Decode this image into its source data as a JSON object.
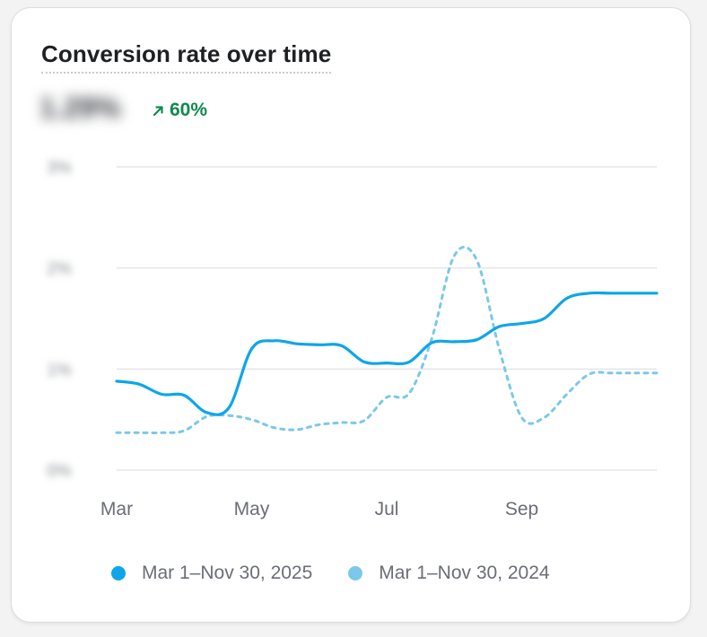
{
  "card": {
    "title": "Conversion rate over time",
    "metric_value": "1.29%",
    "delta_text": "60%",
    "delta_icon": "arrow-up-right-icon",
    "delta_color": "#0e8a4e"
  },
  "chart_data": {
    "type": "line",
    "title": "Conversion rate over time",
    "xlabel": "",
    "ylabel": "",
    "x_ticks": [
      "Mar",
      "May",
      "Jul",
      "Sep"
    ],
    "y_ticks": [
      "0%",
      "1%",
      "2%",
      "3%"
    ],
    "ylim": [
      0,
      3
    ],
    "xlim": [
      0,
      24
    ],
    "grid": true,
    "legend_position": "bottom",
    "series": [
      {
        "name": "Mar 1–Nov 30, 2025",
        "color": "#0ea5e9",
        "style": "solid",
        "x": [
          0,
          1,
          2,
          3,
          4,
          5,
          6,
          7,
          8,
          9,
          10,
          11,
          12,
          13,
          14,
          15,
          16,
          17,
          18,
          19,
          20,
          21,
          22,
          23,
          24
        ],
        "y": [
          0.88,
          0.85,
          0.75,
          0.74,
          0.57,
          0.62,
          1.2,
          1.28,
          1.25,
          1.24,
          1.23,
          1.07,
          1.06,
          1.07,
          1.26,
          1.27,
          1.29,
          1.42,
          1.45,
          1.5,
          1.7,
          1.75,
          1.75,
          1.75,
          1.75
        ]
      },
      {
        "name": "Mar 1–Nov 30, 2024",
        "color": "#7cc8e8",
        "style": "dashed",
        "x": [
          0,
          1,
          2,
          3,
          4,
          5,
          6,
          7,
          8,
          9,
          10,
          11,
          12,
          13,
          14,
          15,
          16,
          17,
          18,
          19,
          20,
          21,
          22,
          23,
          24
        ],
        "y": [
          0.37,
          0.37,
          0.37,
          0.39,
          0.53,
          0.54,
          0.5,
          0.42,
          0.4,
          0.45,
          0.47,
          0.49,
          0.72,
          0.76,
          1.3,
          2.12,
          2.08,
          1.2,
          0.52,
          0.52,
          0.75,
          0.95,
          0.96,
          0.96,
          0.96
        ]
      }
    ]
  }
}
